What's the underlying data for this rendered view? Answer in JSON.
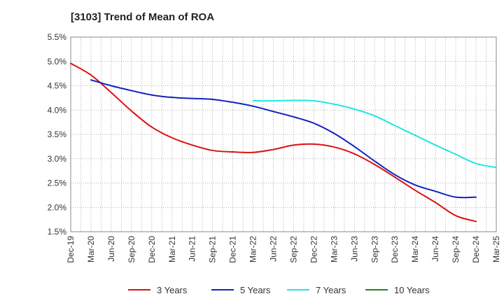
{
  "chart_data": {
    "type": "line",
    "title": "[3103]  Trend of Mean of ROA",
    "xlabel": "",
    "ylabel": "",
    "x_tick_labels": [
      "Dec-19",
      "Mar-20",
      "Jun-20",
      "Sep-20",
      "Dec-20",
      "Mar-21",
      "Jun-21",
      "Sep-21",
      "Dec-21",
      "Mar-22",
      "Jun-22",
      "Sep-22",
      "Dec-22",
      "Mar-23",
      "Jun-23",
      "Sep-23",
      "Dec-23",
      "Mar-24",
      "Jun-24",
      "Sep-24",
      "Dec-24",
      "Mar-25"
    ],
    "y_tick_labels": [
      "5.5%",
      "5.0%",
      "4.5%",
      "4.0%",
      "3.5%",
      "3.0%",
      "2.5%",
      "2.0%",
      "1.5%"
    ],
    "y_tick_values": [
      5.5,
      5.0,
      4.5,
      4.0,
      3.5,
      3.0,
      2.5,
      2.0,
      1.5
    ],
    "ylim": [
      1.5,
      5.5
    ],
    "grid": "dotted",
    "legend_position": "bottom",
    "series": [
      {
        "name": "3 Years",
        "color": "#dd1111",
        "start_index": 0,
        "values": [
          4.96,
          4.72,
          4.36,
          3.98,
          3.65,
          3.43,
          3.28,
          3.17,
          3.14,
          3.13,
          3.19,
          3.28,
          3.3,
          3.24,
          3.1,
          2.88,
          2.62,
          2.35,
          2.1,
          1.83,
          1.71
        ]
      },
      {
        "name": "5 Years",
        "color": "#1122bb",
        "start_index": 1,
        "values": [
          4.62,
          4.5,
          4.4,
          4.31,
          4.26,
          4.24,
          4.22,
          4.16,
          4.08,
          3.97,
          3.86,
          3.73,
          3.52,
          3.25,
          2.95,
          2.67,
          2.46,
          2.33,
          2.21,
          2.21
        ]
      },
      {
        "name": "7 Years",
        "color": "#22e5e5",
        "start_index": 9,
        "values": [
          4.19,
          4.19,
          4.2,
          4.19,
          4.12,
          4.02,
          3.88,
          3.68,
          3.48,
          3.28,
          3.09,
          2.9,
          2.82
        ]
      },
      {
        "name": "10 Years",
        "color": "#228822",
        "start_index": 0,
        "values": []
      }
    ]
  }
}
